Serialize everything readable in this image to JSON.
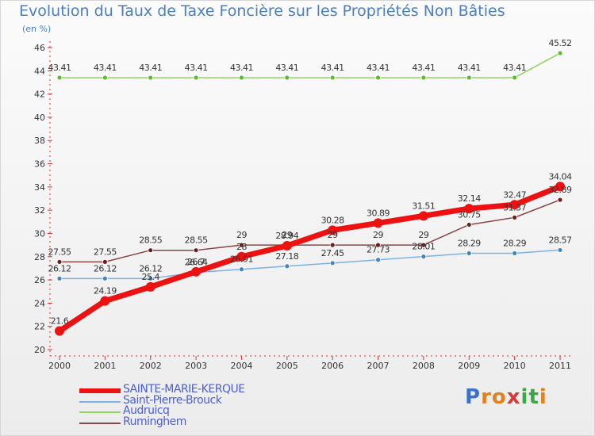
{
  "title": "Evolution du Taux de Taxe Foncière sur les Propriétés Non Bâties",
  "unit_label": "(en %)",
  "logo": {
    "letters": [
      "P",
      "r",
      "o",
      "x",
      "i",
      "t",
      "i"
    ],
    "colors": [
      "#3b6fd0",
      "#e0821e",
      "#e0821e",
      "#d43a3a",
      "#39a845",
      "#39a845",
      "#e0821e"
    ]
  },
  "chart_data": {
    "type": "line",
    "title": "Evolution du Taux de Taxe Foncière sur les Propriétés Non Bâties",
    "ylabel": "(en %)",
    "xlabel": "",
    "x": [
      "2000",
      "2001",
      "2002",
      "2003",
      "2004",
      "2005",
      "2006",
      "2007",
      "2008",
      "2009",
      "2010",
      "2011"
    ],
    "ylim": [
      20,
      46
    ],
    "yticks": [
      "20",
      "22",
      "24",
      "26",
      "28",
      "30",
      "32",
      "34",
      "36",
      "38",
      "40",
      "42",
      "44",
      "46"
    ],
    "grid": false,
    "series": [
      {
        "name": "Audruicq",
        "color": "#8fd45f",
        "point": "#5fb832",
        "width": 1.5,
        "radius": 3,
        "values": [
          43.41,
          43.41,
          43.41,
          43.41,
          43.41,
          43.41,
          43.41,
          43.41,
          43.41,
          43.41,
          43.41,
          45.52
        ],
        "labels": [
          "43.41",
          "43.41",
          "43.41",
          "43.41",
          "43.41",
          "43.41",
          "43.41",
          "43.41",
          "43.41",
          "43.41",
          "43.41",
          "45.52"
        ]
      },
      {
        "name": "Saint-Pierre-Brouck",
        "color": "#7fb1e0",
        "point": "#3c86c8",
        "width": 1.5,
        "radius": 3,
        "values": [
          26.12,
          26.12,
          26.12,
          26.64,
          26.91,
          27.18,
          27.45,
          27.73,
          28.01,
          28.29,
          28.29,
          28.57
        ],
        "labels": [
          "26.12",
          "26.12",
          "26.12",
          "26.64",
          "26.91",
          "27.18",
          "27.45",
          "27.73",
          "28.01",
          "28.29",
          "28.29",
          "28.57"
        ]
      },
      {
        "name": "Ruminghem",
        "color": "#8a4646",
        "point": "#6b1f1f",
        "width": 1.5,
        "radius": 3,
        "values": [
          27.55,
          27.55,
          28.55,
          28.55,
          29,
          29,
          29,
          29,
          29,
          30.75,
          31.37,
          32.89
        ],
        "labels": [
          "27.55",
          "27.55",
          "28.55",
          "28.55",
          "29",
          "29",
          "29",
          "29",
          "29",
          "30.75",
          "31.37",
          "32.89"
        ]
      },
      {
        "name": "SAINTE-MARIE-KERQUE",
        "color": "#ee1111",
        "point": "#ee1111",
        "width": 7,
        "radius": 6,
        "values": [
          21.6,
          24.19,
          25.4,
          26.7,
          28,
          28.94,
          30.28,
          30.89,
          31.51,
          32.14,
          32.47,
          34.04
        ],
        "labels": [
          "21.6",
          "24.19",
          "25.4",
          "26.7",
          "28",
          "28.94",
          "30.28",
          "30.89",
          "31.51",
          "32.14",
          "32.47",
          "34.04"
        ]
      }
    ],
    "legend": {
      "placement": "bottom-left",
      "order": [
        "SAINTE-MARIE-KERQUE",
        "Saint-Pierre-Brouck",
        "Audruicq",
        "Ruminghem"
      ]
    }
  }
}
